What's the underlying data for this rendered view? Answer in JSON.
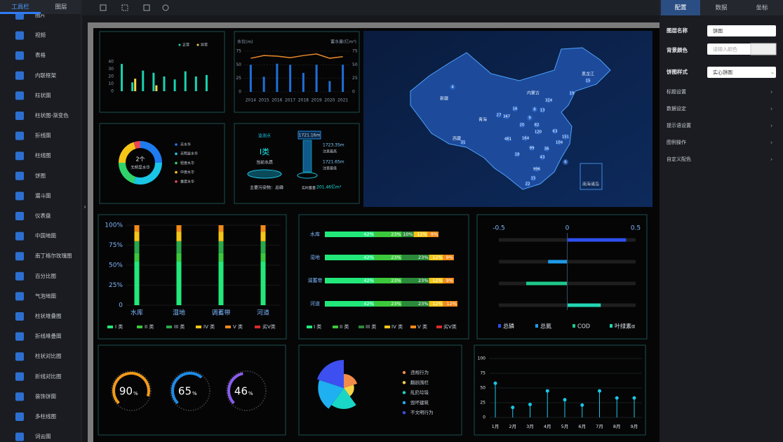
{
  "sidebar": {
    "tabs": [
      "工具栏",
      "图层"
    ],
    "items": [
      "图片",
      "视频",
      "表格",
      "内联框架",
      "柱状图",
      "柱状图-渐变色",
      "折线图",
      "柱线图",
      "饼图",
      "漏斗图",
      "仪表盘",
      "中国地图",
      "南丁格尔玫瑰图",
      "百分比图",
      "气泡地图",
      "柱状堆叠图",
      "折线堆叠图",
      "柱状对比图",
      "折线对比图",
      "装饰饼图",
      "多柱线图",
      "词云图"
    ]
  },
  "panel": {
    "tabs": [
      "配置",
      "数据",
      "坐标"
    ],
    "layer_name": {
      "label": "图层名称",
      "value": "饼图"
    },
    "bg_color": {
      "label": "背景颜色",
      "placeholder": "请输入颜色"
    },
    "pie_style": {
      "label": "饼图样式",
      "value": "实心饼图"
    },
    "sections": [
      "标题设置",
      "数据设定",
      "提示语设置",
      "图例操作",
      "自定义配色"
    ]
  },
  "widgets": {
    "bar_chart": {
      "categories": [
        null,
        null,
        null,
        null,
        null,
        null,
        null,
        null,
        null
      ],
      "series": [
        {
          "name": "正常",
          "color": "#19d3b0",
          "values": [
            37,
            12,
            28,
            25,
            20,
            16,
            27,
            20,
            22
          ]
        },
        {
          "name": "异常",
          "color": "#f5d547",
          "values": [
            0,
            17,
            0,
            8,
            0,
            0,
            0,
            0,
            0
          ]
        }
      ],
      "ylim": [
        0,
        40
      ],
      "yticks": [
        0,
        10,
        20,
        30,
        40
      ]
    },
    "water_chart": {
      "y_label": "水位(m)",
      "y2_label": "蓄水量(亿m³)",
      "categories": [
        "2014",
        "2015",
        "2016",
        "2017",
        "2018",
        "2019",
        "2020",
        "2021"
      ],
      "series": [
        {
          "type": "bar",
          "color": "#1e6fd9",
          "values": [
            50,
            28,
            52,
            50,
            35,
            50,
            20,
            50
          ]
        },
        {
          "type": "line",
          "axis": "y2",
          "color": "#e8892a",
          "values": [
            62,
            67,
            66,
            63,
            67,
            70,
            62,
            65
          ]
        }
      ],
      "ylim": [
        0,
        75
      ],
      "yticks": [
        0,
        25,
        50,
        75
      ],
      "y2lim": [
        0,
        75
      ],
      "y2ticks": [
        0,
        25,
        50,
        75
      ]
    },
    "donut": {
      "center_value": "2个",
      "center_label": "无明显水华",
      "categories": [
        "无水华",
        "无明显水华",
        "轻度水华",
        "中度水华",
        "重度水华"
      ],
      "values": [
        25,
        30,
        20,
        20,
        5
      ],
      "colors": [
        "#1e7bf0",
        "#19c6e6",
        "#2fd36a",
        "#f5c518",
        "#e8455a"
      ]
    },
    "water_quality": {
      "station": "监测点",
      "grade": "I类",
      "grade_label": "当前水质",
      "pollutant": "主要污染物：总磷",
      "level": "1721.16m",
      "high": "1723.35m",
      "high_label": "注意最高",
      "low": "1721.65m",
      "low_label": "注意最低",
      "storage_label": "实时蓄量",
      "storage": "201.46亿m³"
    },
    "map": {
      "regions": [
        "新疆",
        "黑龙江",
        "内蒙古",
        "青海",
        "西藏"
      ],
      "inset": "南海诸岛",
      "values": [
        4,
        15,
        19,
        324,
        8,
        13,
        16,
        27,
        347,
        9,
        20,
        82,
        120,
        31,
        151,
        63,
        461,
        164,
        99,
        36,
        104,
        18,
        43,
        6,
        996,
        22,
        15
      ]
    },
    "stacked_column": {
      "categories": [
        "水库",
        "湿地",
        "调蓄带",
        "河道"
      ],
      "series": [
        {
          "name": "I 类",
          "color": "#22e87a",
          "values": [
            55,
            55,
            55,
            55
          ]
        },
        {
          "name": "II 类",
          "color": "#3cc83c",
          "values": [
            10,
            10,
            10,
            10
          ]
        },
        {
          "name": "III 类",
          "color": "#2aa84a",
          "values": [
            15,
            15,
            15,
            15
          ]
        },
        {
          "name": "IV 类",
          "color": "#f5c518",
          "values": [
            12,
            12,
            12,
            12
          ]
        },
        {
          "name": "V 类",
          "color": "#f28a18",
          "values": [
            8,
            8,
            8,
            8
          ]
        },
        {
          "name": "劣V类",
          "color": "#d92b2b",
          "values": [
            0,
            0,
            0,
            0
          ]
        }
      ],
      "ylim": [
        0,
        100
      ],
      "yticks": [
        0,
        {
          "value": 25,
          "label": "25%"
        },
        {
          "value": 50,
          "label": "50%"
        },
        {
          "value": 75,
          "label": "75%"
        },
        {
          "value": 100,
          "label": "100%"
        }
      ]
    },
    "stacked_bar": {
      "categories": [
        "水库",
        "湿地",
        "调蓄带",
        "河道"
      ],
      "series": [
        {
          "name": "I 类",
          "color": "#22e87a",
          "values": [
            42,
            42,
            42,
            42
          ],
          "value_labels": [
            "42%",
            "42%",
            "42%",
            "42%"
          ]
        },
        {
          "name": "II 类",
          "color": "#3cc83c",
          "values": [
            23,
            23,
            23,
            23
          ],
          "value_labels": [
            "23%",
            "23%",
            "23%",
            "23%"
          ]
        },
        {
          "name": "III 类",
          "color": "#2a8a3a",
          "values": [
            10,
            23,
            23,
            23
          ],
          "value_labels": [
            "10%",
            "23%",
            "23%",
            "23%"
          ]
        },
        {
          "name": "IV 类",
          "color": "#f5c518",
          "values": [
            12,
            12,
            12,
            12
          ],
          "value_labels": [
            "12%",
            "12%",
            "12%",
            "12%"
          ]
        },
        {
          "name": "V 类",
          "color": "#f28a18",
          "values": [
            9,
            9,
            9,
            12
          ],
          "value_labels": [
            "9%",
            "9%",
            "9%",
            "12%"
          ]
        },
        {
          "name": "劣V类",
          "color": "#d92b2b",
          "values": [
            0,
            0,
            0,
            0
          ]
        }
      ],
      "xlim": [
        0,
        112
      ]
    },
    "diverging": {
      "series": [
        {
          "name": "总磷",
          "color": "#2d4ff0",
          "value": 0.43
        },
        {
          "name": "总氮",
          "color": "#1e9be8",
          "value": -0.14
        },
        {
          "name": "COD",
          "color": "#1ec88a",
          "value": -0.3
        },
        {
          "name": "叶绿素α",
          "color": "#22d6b4",
          "value": 0.245
        }
      ],
      "xlim": [
        -0.5,
        0.5
      ],
      "xticks": [
        -0.5,
        0,
        0.5
      ]
    },
    "gauges": {
      "values": [
        90,
        65,
        46
      ],
      "unit": "%",
      "colors": [
        "#f29a1a",
        "#1e8be8",
        "#8a5cf0"
      ]
    },
    "rose": {
      "categories": [
        "违规行为",
        "翻跃围栏",
        "乱扔垃圾",
        "毁坏建筑",
        "不文明行为"
      ],
      "values": [
        30,
        22,
        45,
        55,
        60
      ],
      "colors": [
        "#f28a48",
        "#f5d547",
        "#19d6c6",
        "#1eb0f0",
        "#3d4ff0"
      ]
    },
    "lollipop": {
      "categories": [
        "1月",
        "2月",
        "3月",
        "4月",
        "5月",
        "6月",
        "7月",
        "8月",
        "9月"
      ],
      "values": [
        58,
        17,
        22,
        45,
        30,
        21,
        45,
        33,
        33
      ],
      "ylim": [
        0,
        100
      ],
      "yticks": [
        0,
        25,
        50,
        75,
        100
      ],
      "color": "#19c6e6"
    }
  }
}
